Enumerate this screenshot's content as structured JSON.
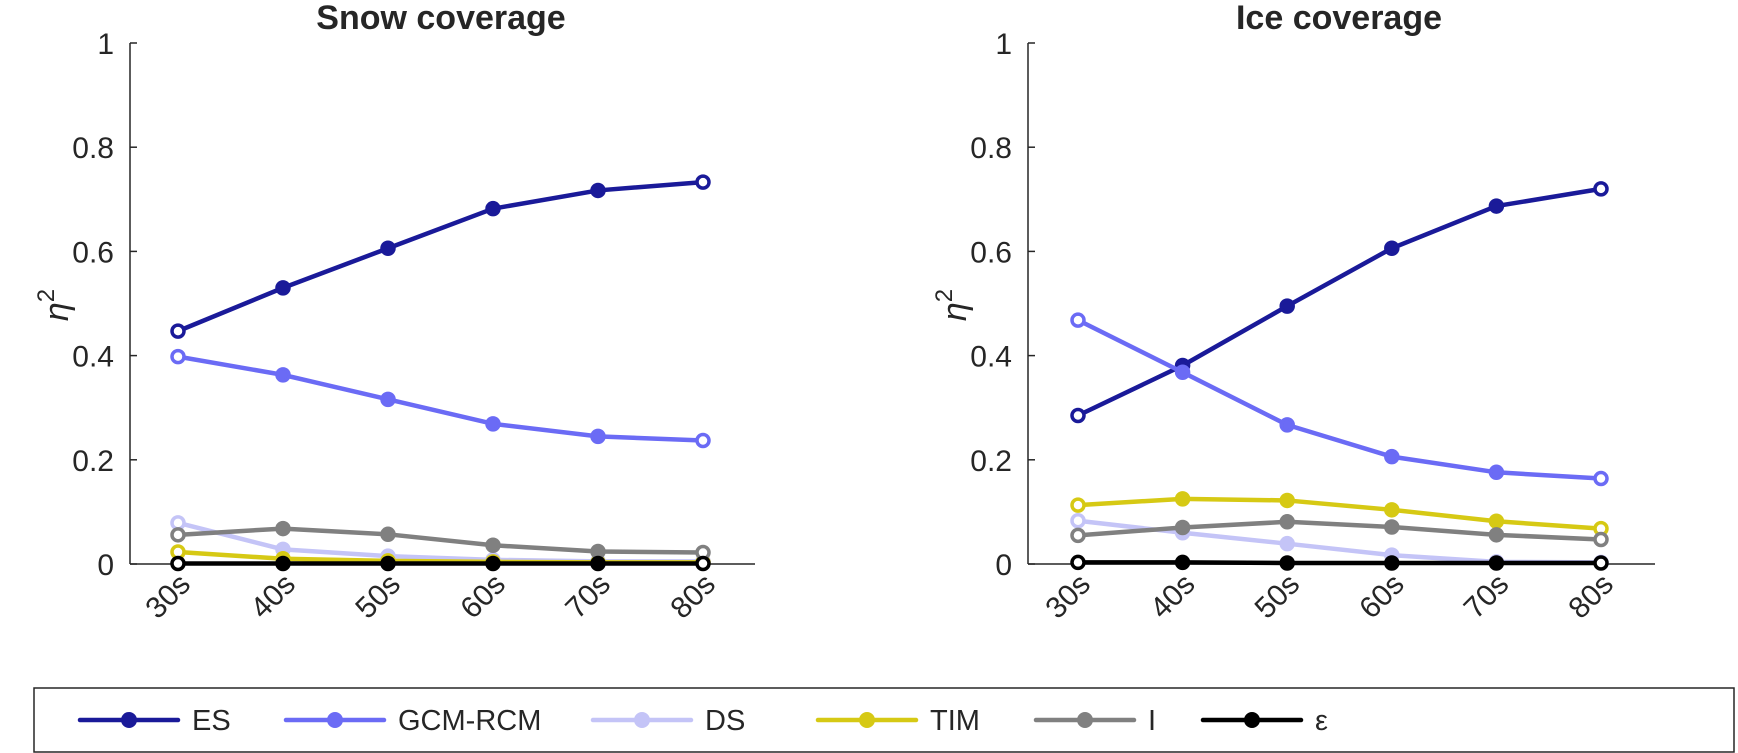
{
  "legend": {
    "entries": [
      {
        "label": "ES",
        "color": "#1a1a99",
        "marker": "filled"
      },
      {
        "label": "GCM-RCM",
        "color": "#6b6bf5",
        "marker": "filled"
      },
      {
        "label": "DS",
        "color": "#c4c4f7",
        "marker": "filled"
      },
      {
        "label": "TIM",
        "color": "#d6c914",
        "marker": "filled"
      },
      {
        "label": "I",
        "color": "#808080",
        "marker": "filled"
      },
      {
        "label": "ε",
        "color": "#000000",
        "marker": "filled"
      }
    ]
  },
  "chart_data": [
    {
      "type": "line",
      "title": "Snow coverage",
      "xlabel": "",
      "ylabel": "η",
      "ylabel_superscript": "2",
      "categories": [
        "30s",
        "40s",
        "50s",
        "60s",
        "70s",
        "80s"
      ],
      "ylim": [
        0,
        1
      ],
      "yticks": [
        "0",
        "0.2",
        "0.4",
        "0.6",
        "0.8",
        "1"
      ],
      "series": [
        {
          "name": "ES",
          "color": "#1a1a99",
          "values": [
            0.447,
            0.53,
            0.606,
            0.682,
            0.717,
            0.733
          ]
        },
        {
          "name": "GCM-RCM",
          "color": "#6b6bf5",
          "values": [
            0.398,
            0.363,
            0.316,
            0.269,
            0.245,
            0.237
          ]
        },
        {
          "name": "DS",
          "color": "#c4c4f7",
          "values": [
            0.079,
            0.028,
            0.015,
            0.008,
            0.005,
            0.005
          ]
        },
        {
          "name": "TIM",
          "color": "#d6c914",
          "values": [
            0.023,
            0.01,
            0.006,
            0.004,
            0.003,
            0.003
          ]
        },
        {
          "name": "I",
          "color": "#808080",
          "values": [
            0.056,
            0.068,
            0.057,
            0.036,
            0.024,
            0.022
          ]
        },
        {
          "name": "ε",
          "color": "#000000",
          "values": [
            0.001,
            0.001,
            0.001,
            0.001,
            0.001,
            0.001
          ]
        }
      ]
    },
    {
      "type": "line",
      "title": "Ice coverage",
      "xlabel": "",
      "ylabel": "η",
      "ylabel_superscript": "2",
      "categories": [
        "30s",
        "40s",
        "50s",
        "60s",
        "70s",
        "80s"
      ],
      "ylim": [
        0,
        1
      ],
      "yticks": [
        "0",
        "0.2",
        "0.4",
        "0.6",
        "0.8",
        "1"
      ],
      "series": [
        {
          "name": "ES",
          "color": "#1a1a99",
          "values": [
            0.285,
            0.381,
            0.495,
            0.606,
            0.687,
            0.72
          ]
        },
        {
          "name": "GCM-RCM",
          "color": "#6b6bf5",
          "values": [
            0.468,
            0.368,
            0.267,
            0.206,
            0.176,
            0.164
          ]
        },
        {
          "name": "DS",
          "color": "#c4c4f7",
          "values": [
            0.083,
            0.06,
            0.039,
            0.017,
            0.004,
            0.003
          ]
        },
        {
          "name": "TIM",
          "color": "#d6c914",
          "values": [
            0.113,
            0.125,
            0.122,
            0.104,
            0.082,
            0.068
          ]
        },
        {
          "name": "I",
          "color": "#808080",
          "values": [
            0.055,
            0.07,
            0.081,
            0.071,
            0.056,
            0.047
          ]
        },
        {
          "name": "ε",
          "color": "#000000",
          "values": [
            0.003,
            0.003,
            0.002,
            0.002,
            0.002,
            0.002
          ]
        }
      ]
    }
  ]
}
